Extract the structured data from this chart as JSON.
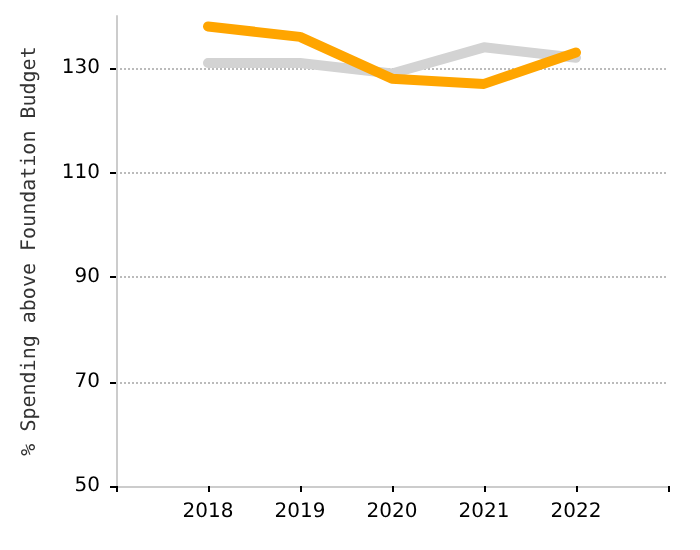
{
  "chart_data": {
    "type": "line",
    "ylabel": "% Spending above Foundation Budget",
    "x": [
      2018,
      2019,
      2020,
      2021,
      2022
    ],
    "series": [
      {
        "color": "#d3d3d3",
        "values": [
          131,
          131,
          129,
          134,
          132
        ]
      },
      {
        "color": "#ffa500",
        "values": [
          138,
          136,
          128,
          127,
          133
        ]
      }
    ],
    "xlim": [
      2017,
      2023
    ],
    "xticks": [
      {
        "value": 2017,
        "label": null
      },
      2018,
      2019,
      2020,
      2021,
      2022,
      {
        "value": 2023,
        "label": null
      }
    ],
    "ylim": [
      50,
      140
    ],
    "yticks": [
      50,
      70,
      90,
      110,
      130
    ],
    "grid": "y",
    "marker": "none",
    "line_style": "solid"
  }
}
